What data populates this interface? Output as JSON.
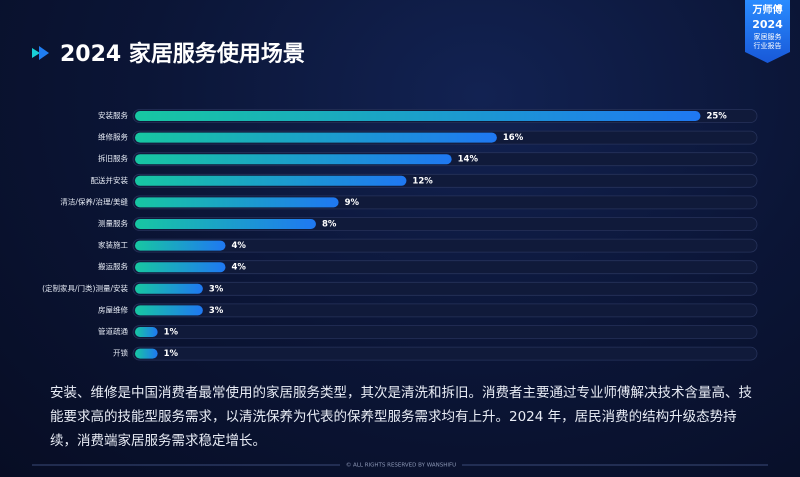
{
  "header": {
    "title": "2024 家居服务使用场景"
  },
  "badge": {
    "brand": "万师傅",
    "year": "2024",
    "line1": "家居服务",
    "line2": "行业报告"
  },
  "chart_data": {
    "type": "bar",
    "orientation": "horizontal",
    "categories": [
      "安装服务",
      "维修服务",
      "拆旧服务",
      "配送并安装",
      "清洁/保养/治理/美缝",
      "测量服务",
      "家装施工",
      "搬运服务",
      "(定制家具/门类)测量/安装",
      "房屋维修",
      "管道疏通",
      "开锁"
    ],
    "values": [
      25,
      16,
      14,
      12,
      9,
      8,
      4,
      4,
      3,
      3,
      1,
      1
    ],
    "value_labels": [
      "25%",
      "16%",
      "14%",
      "12%",
      "9%",
      "8%",
      "4%",
      "4%",
      "3%",
      "3%",
      "1%",
      "1%"
    ],
    "xlim": [
      0,
      27.5
    ],
    "colors": [
      "#17c7a2",
      "#1f78f2"
    ]
  },
  "description": "安装、维修是中国消费者最常使用的家居服务类型，其次是清洗和拆旧。消费者主要通过专业师傅解决技术含量高、技能要求高的技能型服务需求，以清洗保养为代表的保养型服务需求均有上升。2024 年，居民消费的结构升级态势持续，消费端家居服务需求稳定增长。",
  "footer": "© ALL RIGHTS RESERVED BY WANSHIFU"
}
